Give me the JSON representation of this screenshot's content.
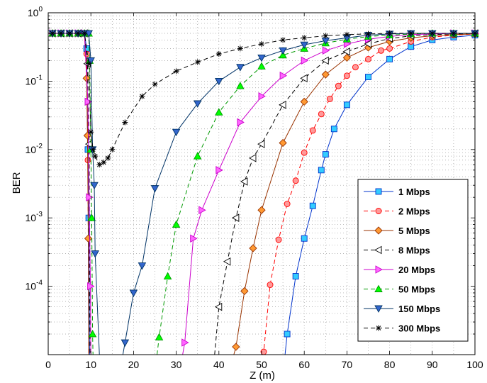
{
  "chart_data": {
    "type": "line",
    "title": "",
    "xlabel": "Z (m)",
    "ylabel": "BER",
    "xlim": [
      0,
      100
    ],
    "ylim": [
      1e-05,
      1
    ],
    "yscale": "log",
    "grid": true,
    "legend_position": "bottom-right",
    "x_ticks": [
      "0",
      "10",
      "20",
      "30",
      "40",
      "50",
      "60",
      "70",
      "80",
      "90",
      "100"
    ],
    "y_ticks": [
      {
        "base": "10",
        "exp": "0"
      },
      {
        "base": "10",
        "exp": "-1"
      },
      {
        "base": "10",
        "exp": "-2"
      },
      {
        "base": "10",
        "exp": "-3"
      },
      {
        "base": "10",
        "exp": "-4"
      }
    ],
    "series": [
      {
        "name": "1 Mbps",
        "color": "#0033cc",
        "fill": "#33ccff",
        "dash": "solid",
        "marker": "square",
        "points": [
          [
            1,
            0.5
          ],
          [
            3,
            0.5
          ],
          [
            5,
            0.5
          ],
          [
            7,
            0.5
          ],
          [
            8.5,
            0.5
          ],
          [
            9,
            0.3
          ],
          [
            9.3,
            0.01
          ],
          [
            9.5,
            0.001
          ],
          [
            9.7,
            1e-05
          ]
        ],
        "points2": [
          [
            55.5,
            1e-05
          ],
          [
            56,
            2e-05
          ],
          [
            58,
            0.00014
          ],
          [
            60,
            0.0005
          ],
          [
            62,
            0.0015
          ],
          [
            64,
            0.005
          ],
          [
            65,
            0.0085
          ],
          [
            67,
            0.02
          ],
          [
            70,
            0.045
          ],
          [
            75,
            0.115
          ],
          [
            80,
            0.21
          ],
          [
            85,
            0.32
          ],
          [
            90,
            0.4
          ],
          [
            95,
            0.44
          ],
          [
            100,
            0.47
          ]
        ]
      },
      {
        "name": "2 Mbps",
        "color": "#ff0000",
        "fill": "#ff9999",
        "dash": "6,4",
        "marker": "circle",
        "points": [
          [
            1,
            0.5
          ],
          [
            3,
            0.5
          ],
          [
            5,
            0.5
          ],
          [
            7,
            0.5
          ],
          [
            8.5,
            0.5
          ],
          [
            9,
            0.25
          ],
          [
            9.3,
            0.007
          ],
          [
            9.5,
            1e-05
          ]
        ],
        "points2": [
          [
            50,
            1e-05
          ],
          [
            50.5,
            1.1e-05
          ],
          [
            52,
            0.000105
          ],
          [
            54,
            0.00048
          ],
          [
            56,
            0.0016
          ],
          [
            58,
            0.0035
          ],
          [
            60,
            0.009
          ],
          [
            62,
            0.019
          ],
          [
            64,
            0.033
          ],
          [
            66,
            0.055
          ],
          [
            68,
            0.085
          ],
          [
            70,
            0.12
          ],
          [
            72,
            0.16
          ],
          [
            75,
            0.21
          ],
          [
            78,
            0.28
          ],
          [
            80,
            0.3
          ],
          [
            85,
            0.38
          ],
          [
            90,
            0.44
          ],
          [
            95,
            0.47
          ],
          [
            100,
            0.49
          ]
        ]
      },
      {
        "name": "5 Mbps",
        "color": "#993300",
        "fill": "#ff9933",
        "dash": "solid",
        "marker": "diamond",
        "points": [
          [
            1,
            0.5
          ],
          [
            3,
            0.5
          ],
          [
            5,
            0.5
          ],
          [
            7,
            0.5
          ],
          [
            8.5,
            0.5
          ],
          [
            9,
            0.11
          ],
          [
            9.2,
            0.016
          ],
          [
            9.4,
            0.0005
          ],
          [
            9.5,
            1e-05
          ]
        ],
        "points2": [
          [
            43.5,
            1e-05
          ],
          [
            44,
            1.3e-05
          ],
          [
            46,
            8.5e-05
          ],
          [
            48,
            0.00036
          ],
          [
            50,
            0.0013
          ],
          [
            55,
            0.0125
          ],
          [
            60,
            0.05
          ],
          [
            65,
            0.125
          ],
          [
            70,
            0.22
          ],
          [
            75,
            0.31
          ],
          [
            80,
            0.38
          ],
          [
            85,
            0.43
          ],
          [
            90,
            0.46
          ],
          [
            95,
            0.48
          ],
          [
            100,
            0.49
          ]
        ]
      },
      {
        "name": "8 Mbps",
        "color": "#000000",
        "fill": "#ffffff",
        "dash": "6,4",
        "marker": "triangle-left",
        "points": [
          [
            1,
            0.5
          ],
          [
            3,
            0.5
          ],
          [
            5,
            0.5
          ],
          [
            7,
            0.5
          ],
          [
            8.5,
            0.5
          ],
          [
            9.2,
            0.18
          ],
          [
            9.6,
            0.012
          ],
          [
            9.8,
            1e-05
          ]
        ],
        "points2": [
          [
            39,
            1e-05
          ],
          [
            40,
            5e-05
          ],
          [
            42,
            0.00023
          ],
          [
            44,
            0.001
          ],
          [
            46,
            0.0034
          ],
          [
            48,
            0.0075
          ],
          [
            50,
            0.012
          ],
          [
            55,
            0.045
          ],
          [
            60,
            0.11
          ],
          [
            65,
            0.2
          ],
          [
            70,
            0.27
          ],
          [
            75,
            0.35
          ],
          [
            80,
            0.42
          ],
          [
            85,
            0.46
          ],
          [
            90,
            0.48
          ],
          [
            95,
            0.49
          ],
          [
            100,
            0.5
          ]
        ]
      },
      {
        "name": "20 Mbps",
        "color": "#cc00cc",
        "fill": "#ff66ff",
        "dash": "solid",
        "marker": "triangle-right",
        "points": [
          [
            1,
            0.5
          ],
          [
            3,
            0.5
          ],
          [
            5,
            0.5
          ],
          [
            7,
            0.5
          ],
          [
            8.5,
            0.5
          ],
          [
            9.3,
            0.05
          ],
          [
            9.6,
            0.002
          ],
          [
            9.9,
            0.0001
          ],
          [
            10,
            1e-05
          ]
        ],
        "points2": [
          [
            31.5,
            1e-05
          ],
          [
            32,
            1.5e-05
          ],
          [
            34,
            0.0005
          ],
          [
            36,
            0.0013
          ],
          [
            40,
            0.005
          ],
          [
            45,
            0.025
          ],
          [
            50,
            0.06
          ],
          [
            55,
            0.12
          ],
          [
            60,
            0.2
          ],
          [
            65,
            0.28
          ],
          [
            70,
            0.35
          ],
          [
            75,
            0.41
          ],
          [
            80,
            0.45
          ],
          [
            85,
            0.48
          ],
          [
            90,
            0.49
          ],
          [
            95,
            0.5
          ],
          [
            100,
            0.5
          ]
        ]
      },
      {
        "name": "50 Mbps",
        "color": "#009900",
        "fill": "#00ff00",
        "dash": "6,4",
        "marker": "triangle-up",
        "points": [
          [
            1,
            0.5
          ],
          [
            3,
            0.5
          ],
          [
            5,
            0.5
          ],
          [
            7,
            0.5
          ],
          [
            8.5,
            0.5
          ],
          [
            9.5,
            0.5
          ],
          [
            9.7,
            0.2
          ],
          [
            10,
            0.01
          ],
          [
            10.2,
            0.001
          ],
          [
            10.4,
            2e-05
          ],
          [
            10.5,
            1e-05
          ]
        ],
        "points2": [
          [
            25.5,
            1e-05
          ],
          [
            26,
            1.8e-05
          ],
          [
            28,
            0.00014
          ],
          [
            30,
            0.0008
          ],
          [
            35,
            0.008
          ],
          [
            40,
            0.035
          ],
          [
            45,
            0.085
          ],
          [
            50,
            0.165
          ],
          [
            55,
            0.24
          ],
          [
            60,
            0.3
          ],
          [
            65,
            0.36
          ],
          [
            70,
            0.41
          ],
          [
            75,
            0.45
          ],
          [
            80,
            0.47
          ],
          [
            85,
            0.49
          ],
          [
            90,
            0.5
          ],
          [
            95,
            0.5
          ],
          [
            100,
            0.5
          ]
        ]
      },
      {
        "name": "150 Mbps",
        "color": "#003366",
        "fill": "#3366cc",
        "dash": "solid",
        "marker": "triangle-down",
        "points": [
          [
            1,
            0.5
          ],
          [
            3,
            0.5
          ],
          [
            5,
            0.5
          ],
          [
            7,
            0.5
          ],
          [
            8.5,
            0.5
          ],
          [
            9.5,
            0.5
          ],
          [
            10,
            0.2
          ],
          [
            10.4,
            0.01
          ],
          [
            10.8,
            0.003
          ],
          [
            11,
            0.0003
          ],
          [
            12,
            1e-05
          ]
        ],
        "points2": [
          [
            17.5,
            1e-05
          ],
          [
            18,
            1.5e-05
          ],
          [
            20,
            8e-05
          ],
          [
            22,
            0.0002
          ],
          [
            25,
            0.0027
          ],
          [
            30,
            0.018
          ],
          [
            35,
            0.047
          ],
          [
            40,
            0.1
          ],
          [
            45,
            0.16
          ],
          [
            50,
            0.22
          ],
          [
            55,
            0.28
          ],
          [
            60,
            0.34
          ],
          [
            65,
            0.39
          ],
          [
            70,
            0.43
          ],
          [
            75,
            0.47
          ],
          [
            80,
            0.49
          ],
          [
            85,
            0.5
          ],
          [
            90,
            0.5
          ],
          [
            95,
            0.5
          ],
          [
            100,
            0.5
          ]
        ]
      },
      {
        "name": "300 Mbps",
        "color": "#000000",
        "fill": "#000000",
        "dash": "6,4",
        "marker": "star",
        "points": [
          [
            1,
            0.5
          ],
          [
            3,
            0.5
          ],
          [
            5,
            0.5
          ],
          [
            7,
            0.5
          ],
          [
            8.5,
            0.5
          ],
          [
            9.5,
            0.18
          ],
          [
            10,
            0.018
          ],
          [
            10.5,
            0.01
          ],
          [
            11,
            0.008
          ],
          [
            12,
            0.006
          ],
          [
            13,
            0.0065
          ],
          [
            14,
            0.0075
          ],
          [
            15,
            0.01
          ],
          [
            18,
            0.025
          ],
          [
            22,
            0.06
          ],
          [
            25,
            0.09
          ],
          [
            30,
            0.14
          ],
          [
            35,
            0.19
          ],
          [
            40,
            0.25
          ],
          [
            45,
            0.3
          ],
          [
            50,
            0.35
          ],
          [
            55,
            0.4
          ],
          [
            60,
            0.43
          ],
          [
            65,
            0.46
          ],
          [
            70,
            0.48
          ],
          [
            75,
            0.49
          ],
          [
            80,
            0.5
          ],
          [
            85,
            0.5
          ],
          [
            90,
            0.5
          ],
          [
            95,
            0.5
          ],
          [
            100,
            0.5
          ]
        ],
        "points2": []
      }
    ]
  }
}
